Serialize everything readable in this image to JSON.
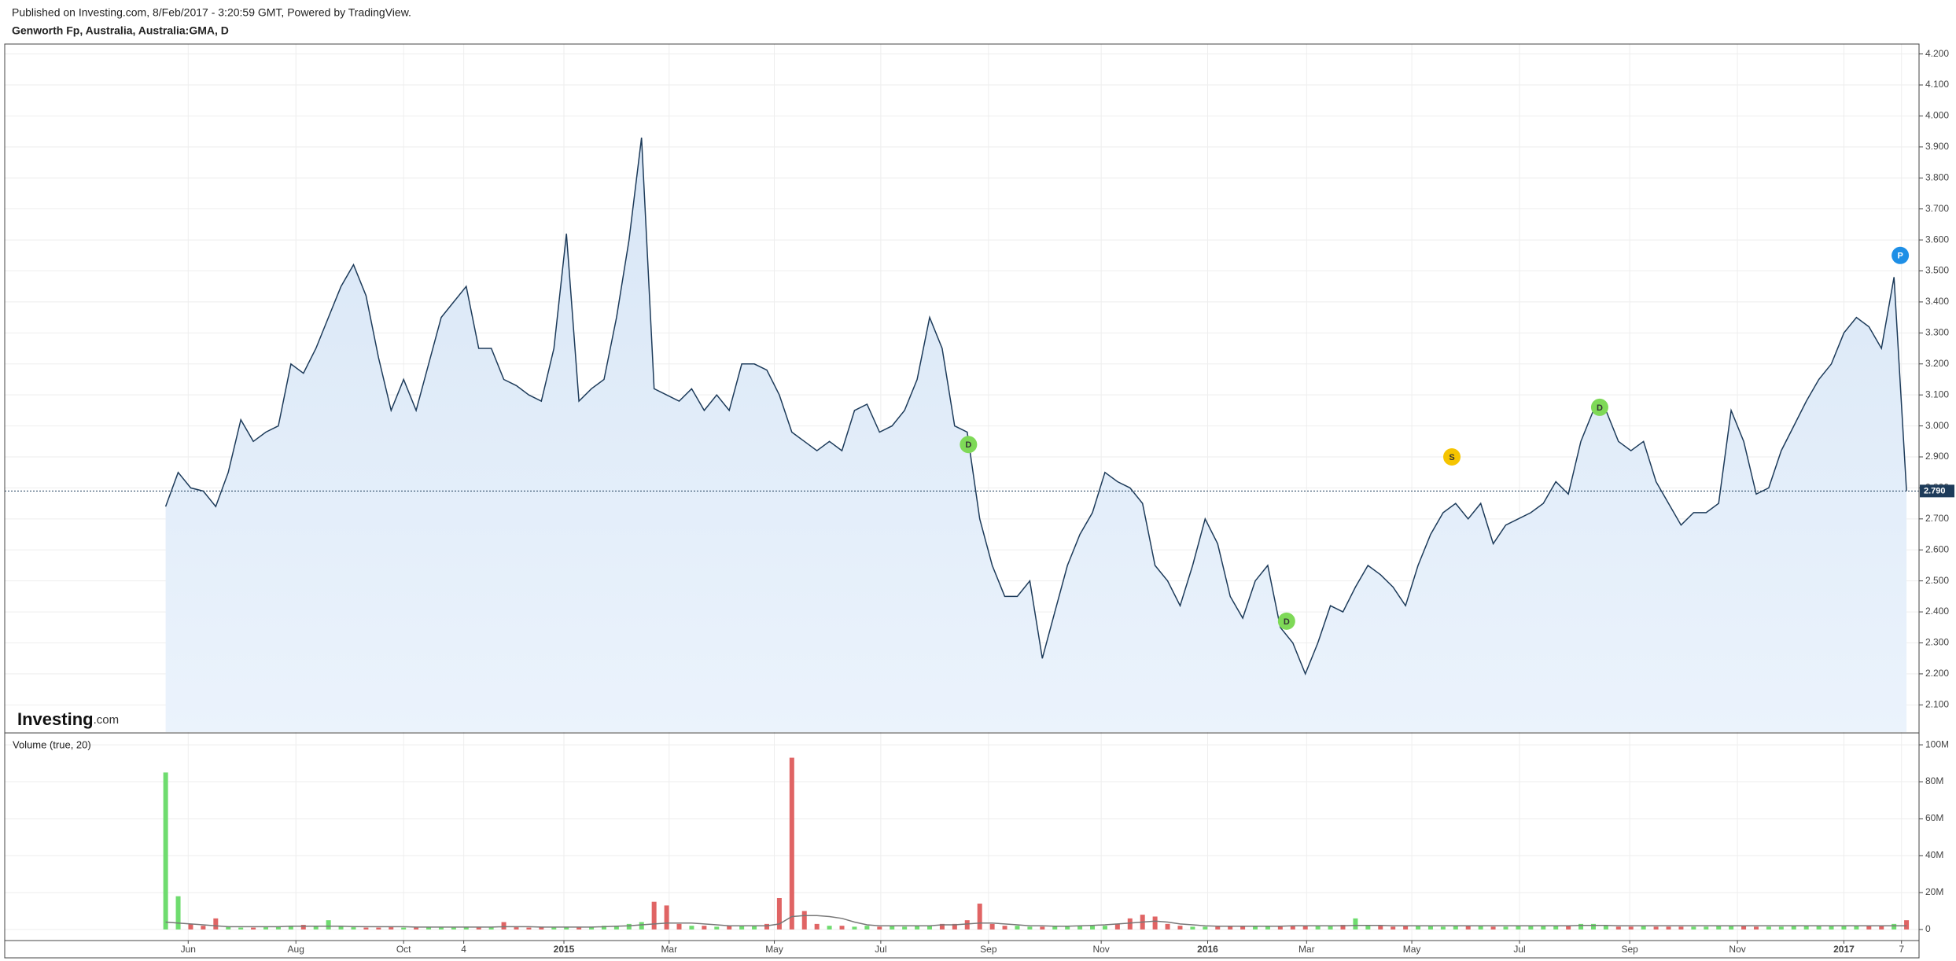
{
  "header": {
    "published": "Published on Investing.com, 8/Feb/2017 - 3:20:59 GMT, Powered by TradingView.",
    "symbol": "Genworth Fp, Australia, Australia:GMA, D"
  },
  "logo": {
    "brand": "Investing",
    "suffix": ".com"
  },
  "chart_data": [
    {
      "type": "line",
      "area": true,
      "grid": true,
      "color": "#1d3b5a",
      "fill": "#dde9f7",
      "x": [
        0,
        1,
        2,
        3,
        4,
        5,
        6,
        7,
        8,
        9,
        10,
        11,
        12,
        13,
        14,
        15,
        16,
        17,
        18,
        19,
        20,
        21,
        22,
        23,
        24,
        25,
        26,
        27,
        28,
        29,
        30,
        31,
        32,
        33,
        34,
        35,
        36,
        37,
        38,
        39,
        40,
        41,
        42,
        43,
        44,
        45,
        46,
        47,
        48,
        49,
        50,
        51,
        52,
        53,
        54,
        55,
        56,
        57,
        58,
        59,
        60,
        61,
        62,
        63,
        64,
        65,
        66,
        67,
        68,
        69,
        70,
        71,
        72,
        73,
        74,
        75,
        76,
        77,
        78,
        79,
        80,
        81,
        82,
        83,
        84,
        85,
        86,
        87,
        88,
        89,
        90,
        91,
        92,
        93,
        94,
        95,
        96,
        97,
        98,
        99,
        100,
        101,
        102,
        103,
        104,
        105,
        106,
        107,
        108,
        109,
        110,
        111,
        112,
        113,
        114,
        115,
        116,
        117,
        118,
        119,
        120,
        121,
        122,
        123,
        124,
        125,
        126,
        127,
        128,
        129,
        130,
        131,
        132,
        133,
        134,
        135,
        136,
        137,
        138,
        139
      ],
      "values": [
        2.74,
        2.85,
        2.8,
        2.79,
        2.74,
        2.85,
        3.02,
        2.95,
        2.98,
        3.0,
        3.2,
        3.17,
        3.25,
        3.35,
        3.45,
        3.52,
        3.42,
        3.22,
        3.05,
        3.15,
        3.05,
        3.2,
        3.35,
        3.4,
        3.45,
        3.25,
        3.25,
        3.15,
        3.13,
        3.1,
        3.08,
        3.25,
        3.62,
        3.08,
        3.12,
        3.15,
        3.35,
        3.6,
        3.93,
        3.12,
        3.1,
        3.08,
        3.12,
        3.05,
        3.1,
        3.05,
        3.2,
        3.2,
        3.18,
        3.1,
        2.98,
        2.95,
        2.92,
        2.95,
        2.92,
        3.05,
        3.07,
        2.98,
        3.0,
        3.05,
        3.15,
        3.35,
        3.25,
        3.0,
        2.98,
        2.7,
        2.55,
        2.45,
        2.45,
        2.5,
        2.25,
        2.4,
        2.55,
        2.65,
        2.72,
        2.85,
        2.82,
        2.8,
        2.75,
        2.55,
        2.5,
        2.42,
        2.55,
        2.7,
        2.62,
        2.45,
        2.38,
        2.5,
        2.55,
        2.35,
        2.3,
        2.2,
        2.3,
        2.42,
        2.4,
        2.48,
        2.55,
        2.52,
        2.48,
        2.42,
        2.55,
        2.65,
        2.72,
        2.75,
        2.7,
        2.75,
        2.62,
        2.68,
        2.7,
        2.72,
        2.75,
        2.82,
        2.78,
        2.95,
        3.05,
        3.05,
        2.95,
        2.92,
        2.95,
        2.82,
        2.75,
        2.68,
        2.72,
        2.72,
        2.75,
        3.05,
        2.95,
        2.78,
        2.8,
        2.92,
        3.0,
        3.08,
        3.15,
        3.2,
        3.3,
        3.35,
        3.32,
        3.25,
        3.48,
        2.79
      ],
      "xlim": [
        -12.85,
        140
      ],
      "xticks": [
        {
          "value": 1.8,
          "label": "Jun"
        },
        {
          "value": 10.4,
          "label": "Aug"
        },
        {
          "value": 19.0,
          "label": "Oct"
        },
        {
          "value": 23.8,
          "label": "4"
        },
        {
          "value": 31.8,
          "label": "2015"
        },
        {
          "value": 40.2,
          "label": "Mar"
        },
        {
          "value": 48.6,
          "label": "May"
        },
        {
          "value": 57.1,
          "label": "Jul"
        },
        {
          "value": 65.7,
          "label": "Sep"
        },
        {
          "value": 74.7,
          "label": "Nov"
        },
        {
          "value": 83.2,
          "label": "2016"
        },
        {
          "value": 91.1,
          "label": "Mar"
        },
        {
          "value": 99.5,
          "label": "May"
        },
        {
          "value": 108.1,
          "label": "Jul"
        },
        {
          "value": 116.9,
          "label": "Sep"
        },
        {
          "value": 125.5,
          "label": "Nov"
        },
        {
          "value": 134.0,
          "label": "2017"
        },
        {
          "value": 138.6,
          "label": "7"
        }
      ],
      "ylim": [
        2.012,
        4.232
      ],
      "yticks": [
        {
          "value": 2.1,
          "label": "2.100"
        },
        {
          "value": 2.2,
          "label": "2.200"
        },
        {
          "value": 2.3,
          "label": "2.300"
        },
        {
          "value": 2.4,
          "label": "2.400"
        },
        {
          "value": 2.5,
          "label": "2.500"
        },
        {
          "value": 2.6,
          "label": "2.600"
        },
        {
          "value": 2.7,
          "label": "2.700"
        },
        {
          "value": 2.8,
          "label": "2.800"
        },
        {
          "value": 2.9,
          "label": "2.900"
        },
        {
          "value": 3.0,
          "label": "3.000"
        },
        {
          "value": 3.1,
          "label": "3.100"
        },
        {
          "value": 3.2,
          "label": "3.200"
        },
        {
          "value": 3.3,
          "label": "3.300"
        },
        {
          "value": 3.4,
          "label": "3.400"
        },
        {
          "value": 3.5,
          "label": "3.500"
        },
        {
          "value": 3.6,
          "label": "3.600"
        },
        {
          "value": 3.7,
          "label": "3.700"
        },
        {
          "value": 3.8,
          "label": "3.800"
        },
        {
          "value": 3.9,
          "label": "3.900"
        },
        {
          "value": 4.0,
          "label": "4.000"
        },
        {
          "value": 4.1,
          "label": "4.100"
        },
        {
          "value": 4.2,
          "label": "4.200"
        }
      ],
      "last_price": {
        "value": 2.79,
        "label": "2.790"
      },
      "events": [
        {
          "x": 64.1,
          "y": 2.94,
          "label": "D",
          "color": "#7ed957"
        },
        {
          "x": 89.5,
          "y": 2.37,
          "label": "D",
          "color": "#7ed957"
        },
        {
          "x": 102.7,
          "y": 2.9,
          "label": "S",
          "color": "#f5c400"
        },
        {
          "x": 114.5,
          "y": 3.06,
          "label": "D",
          "color": "#7ed957"
        },
        {
          "x": 138.5,
          "y": 3.55,
          "label": "P",
          "color": "#1e8fe6"
        }
      ]
    },
    {
      "type": "bar",
      "title": "Volume (true, 20)",
      "up_color": "#6fdc6f",
      "down_color": "#e06464",
      "ma_color": "#777777",
      "values": [
        85,
        18,
        3,
        2,
        6,
        1.5,
        1,
        1,
        1.2,
        1.5,
        2,
        2.5,
        2,
        5,
        1.5,
        1.2,
        1,
        1,
        1.2,
        1,
        1,
        1.2,
        1,
        1,
        1.5,
        1,
        1,
        4,
        1.2,
        1,
        1.5,
        1,
        1.2,
        1,
        1.5,
        2,
        2,
        3,
        4,
        15,
        13,
        3,
        2,
        2,
        1.5,
        2,
        2,
        2,
        3,
        17,
        93,
        10,
        3,
        2,
        2,
        1.5,
        2,
        1.5,
        2,
        1.5,
        2,
        2,
        3,
        3,
        5,
        14,
        3,
        2,
        2,
        1.5,
        1.5,
        1.5,
        1.5,
        2,
        2,
        2,
        3,
        6,
        8,
        7,
        3,
        2,
        1.5,
        1.5,
        1.5,
        2,
        2,
        2,
        1.5,
        1.5,
        2,
        2,
        2,
        2,
        2.5,
        6,
        2,
        2,
        1.5,
        2,
        2,
        2,
        1.5,
        2,
        2,
        2,
        1.5,
        1.5,
        2,
        2,
        2,
        2,
        2,
        3,
        3,
        2,
        1.5,
        1.5,
        2,
        1.5,
        1.5,
        1.5,
        1.5,
        1.5,
        2,
        2,
        2,
        1.5,
        1.5,
        1.5,
        2,
        2,
        2,
        2,
        2,
        2,
        2,
        2,
        3,
        5
      ],
      "ma": [
        4,
        3.5,
        3,
        2.5,
        2,
        1.5,
        1.5,
        1.5,
        1.5,
        1.5,
        1.8,
        1.8,
        1.8,
        1.8,
        1.8,
        1.6,
        1.5,
        1.5,
        1.5,
        1.5,
        1.3,
        1.3,
        1.3,
        1.3,
        1.3,
        1.3,
        1.3,
        1.5,
        1.5,
        1.5,
        1.3,
        1.3,
        1.3,
        1.3,
        1.3,
        1.5,
        1.8,
        2,
        2.5,
        3,
        3.5,
        3.5,
        3.5,
        3,
        2.5,
        2,
        2,
        2,
        2,
        3,
        7,
        7.5,
        7.5,
        7,
        6,
        4,
        2.5,
        2,
        2,
        2,
        2,
        2,
        2.5,
        2.5,
        3,
        3.5,
        3.5,
        3,
        2.5,
        2,
        2,
        1.8,
        1.8,
        2,
        2.2,
        2.5,
        3,
        3.5,
        4,
        4.5,
        4,
        3,
        2.5,
        2,
        1.8,
        1.8,
        1.8,
        1.8,
        1.8,
        1.8,
        2,
        2,
        2,
        2,
        2,
        2.2,
        2.2,
        2.2,
        2,
        2,
        2,
        2,
        2,
        2,
        2,
        2,
        2,
        2,
        2,
        2,
        2,
        2,
        2,
        2.2,
        2.2,
        2.2,
        2,
        2,
        2,
        2,
        2,
        2,
        2,
        2,
        2,
        2,
        2,
        2,
        2,
        2,
        2,
        2,
        2,
        2,
        2,
        2,
        2,
        2,
        2,
        2
      ],
      "ylim": [
        -6,
        106
      ],
      "yticks": [
        0,
        {
          "value": 20,
          "label": "20M"
        },
        {
          "value": 40,
          "label": "40M"
        },
        {
          "value": 60,
          "label": "60M"
        },
        {
          "value": 80,
          "label": "80M"
        },
        {
          "value": 100,
          "label": "100M"
        }
      ]
    }
  ]
}
